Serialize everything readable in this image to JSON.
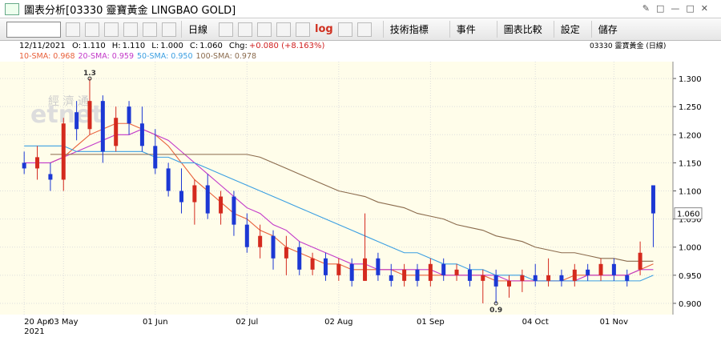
{
  "window": {
    "title": "圖表分析[03330 靈寶黃金 LINGBAO GOLD]"
  },
  "toolbar": {
    "period": "日線",
    "log": "log",
    "buttons": [
      "技術指標",
      "事件",
      "圖表比較",
      "設定",
      "儲存"
    ]
  },
  "info": {
    "date": "12/11/2021",
    "items": [
      "O:",
      "1.110",
      "H:",
      "1.110",
      "L:",
      "1.000",
      "C:",
      "1.060",
      "Chg:",
      "+0.080 (+8.163%)"
    ],
    "stock": "03330  靈寶黃金 (日線)"
  },
  "watermark": {
    "cn": "經 濟 通",
    "en": "etnet"
  },
  "chart_data": {
    "type": "candlestick",
    "categories": [
      "20 Apr",
      null,
      null,
      "03 May",
      null,
      null,
      null,
      null,
      null,
      null,
      "01 Jun",
      null,
      null,
      null,
      null,
      null,
      null,
      "02 Jul",
      null,
      null,
      null,
      null,
      null,
      null,
      "02 Aug",
      null,
      null,
      null,
      null,
      null,
      null,
      "01 Sep",
      null,
      null,
      null,
      null,
      null,
      null,
      null,
      "04 Oct",
      null,
      null,
      null,
      null,
      null,
      "01 Nov",
      null,
      null,
      null
    ],
    "x_year": "2021",
    "open": [
      1.15,
      1.14,
      1.13,
      1.12,
      1.24,
      1.21,
      1.26,
      1.18,
      1.25,
      1.22,
      1.18,
      1.14,
      1.1,
      1.08,
      1.11,
      1.06,
      1.09,
      1.04,
      1.0,
      1.02,
      0.98,
      1.0,
      0.96,
      0.98,
      0.95,
      0.97,
      0.94,
      0.98,
      0.95,
      0.94,
      0.96,
      0.94,
      0.97,
      0.95,
      0.96,
      0.94,
      0.95,
      0.93,
      0.94,
      0.95,
      0.94,
      0.95,
      0.94,
      0.96,
      0.95,
      0.97,
      0.95,
      0.96,
      1.11
    ],
    "high": [
      1.17,
      1.18,
      1.15,
      1.23,
      1.26,
      1.3,
      1.27,
      1.25,
      1.26,
      1.25,
      1.21,
      1.15,
      1.14,
      1.12,
      1.13,
      1.1,
      1.1,
      1.06,
      1.04,
      1.03,
      1.02,
      1.01,
      0.99,
      0.99,
      0.98,
      0.98,
      1.06,
      0.99,
      0.97,
      0.97,
      0.97,
      0.98,
      0.98,
      0.97,
      0.97,
      0.96,
      0.96,
      0.95,
      0.96,
      0.97,
      0.98,
      0.96,
      0.97,
      0.97,
      0.98,
      0.98,
      0.96,
      1.01,
      1.11
    ],
    "low": [
      1.13,
      1.12,
      1.1,
      1.1,
      1.19,
      1.2,
      1.15,
      1.17,
      1.2,
      1.17,
      1.13,
      1.09,
      1.06,
      1.04,
      1.05,
      1.04,
      1.02,
      0.99,
      0.98,
      0.96,
      0.95,
      0.95,
      0.95,
      0.94,
      0.94,
      0.93,
      0.94,
      0.94,
      0.93,
      0.93,
      0.93,
      0.93,
      0.94,
      0.94,
      0.93,
      0.9,
      0.9,
      0.91,
      0.92,
      0.93,
      0.93,
      0.93,
      0.93,
      0.94,
      0.94,
      0.94,
      0.93,
      0.95,
      1.0
    ],
    "close": [
      1.14,
      1.16,
      1.12,
      1.22,
      1.21,
      1.26,
      1.17,
      1.23,
      1.22,
      1.18,
      1.14,
      1.1,
      1.08,
      1.11,
      1.06,
      1.09,
      1.04,
      1.0,
      1.02,
      0.98,
      1.0,
      0.96,
      0.98,
      0.95,
      0.97,
      0.94,
      0.98,
      0.95,
      0.94,
      0.96,
      0.94,
      0.97,
      0.95,
      0.96,
      0.94,
      0.95,
      0.93,
      0.94,
      0.95,
      0.94,
      0.95,
      0.94,
      0.96,
      0.95,
      0.97,
      0.95,
      0.94,
      0.99,
      1.06
    ],
    "up_color": "#d42a1e",
    "down_color": "#1c38d4",
    "series": [
      {
        "name": "10-SMA: 0.968",
        "color": "#e8603a",
        "values": [
          null,
          null,
          1.15,
          1.16,
          1.18,
          1.2,
          1.21,
          1.22,
          1.22,
          1.21,
          1.2,
          1.18,
          1.15,
          1.12,
          1.1,
          1.08,
          1.06,
          1.05,
          1.03,
          1.02,
          1.0,
          0.99,
          0.98,
          0.97,
          0.97,
          0.96,
          0.96,
          0.96,
          0.96,
          0.95,
          0.95,
          0.95,
          0.95,
          0.95,
          0.95,
          0.95,
          0.94,
          0.94,
          0.94,
          0.94,
          0.94,
          0.94,
          0.95,
          0.95,
          0.95,
          0.95,
          0.95,
          0.96,
          0.97
        ]
      },
      {
        "name": "20-SMA: 0.959",
        "color": "#c238c8",
        "values": [
          1.15,
          1.15,
          1.15,
          1.16,
          1.17,
          1.18,
          1.19,
          1.2,
          1.2,
          1.21,
          1.2,
          1.19,
          1.17,
          1.15,
          1.13,
          1.11,
          1.09,
          1.07,
          1.06,
          1.04,
          1.03,
          1.01,
          1.0,
          0.99,
          0.98,
          0.97,
          0.97,
          0.96,
          0.96,
          0.96,
          0.96,
          0.96,
          0.95,
          0.95,
          0.95,
          0.95,
          0.95,
          0.94,
          0.94,
          0.94,
          0.94,
          0.94,
          0.94,
          0.95,
          0.95,
          0.95,
          0.95,
          0.96,
          0.96
        ]
      },
      {
        "name": "50-SMA: 0.950",
        "color": "#3b9fe2",
        "values": [
          1.18,
          1.18,
          1.18,
          1.18,
          1.17,
          1.17,
          1.17,
          1.17,
          1.17,
          1.17,
          1.16,
          1.16,
          1.15,
          1.15,
          1.14,
          1.13,
          1.12,
          1.11,
          1.1,
          1.09,
          1.08,
          1.07,
          1.06,
          1.05,
          1.04,
          1.03,
          1.02,
          1.01,
          1.0,
          0.99,
          0.99,
          0.98,
          0.97,
          0.97,
          0.96,
          0.96,
          0.95,
          0.95,
          0.95,
          0.94,
          0.94,
          0.94,
          0.94,
          0.94,
          0.94,
          0.94,
          0.94,
          0.94,
          0.95
        ]
      },
      {
        "name": "100-SMA: 0.978",
        "color": "#8a6a4c",
        "values": [
          null,
          null,
          1.165,
          1.165,
          1.165,
          1.165,
          1.165,
          1.165,
          1.165,
          1.165,
          1.165,
          1.165,
          1.165,
          1.165,
          1.165,
          1.165,
          1.165,
          1.165,
          1.16,
          1.15,
          1.14,
          1.13,
          1.12,
          1.11,
          1.1,
          1.095,
          1.09,
          1.08,
          1.075,
          1.07,
          1.06,
          1.055,
          1.05,
          1.04,
          1.035,
          1.03,
          1.02,
          1.015,
          1.01,
          1.0,
          0.995,
          0.99,
          0.99,
          0.985,
          0.98,
          0.98,
          0.975,
          0.975,
          0.975
        ]
      }
    ],
    "annotations": [
      {
        "text": "1.3",
        "index": 5,
        "value": 1.3
      },
      {
        "text": "0.9",
        "index": 36,
        "value": 0.9
      }
    ],
    "last_price": {
      "value": 1.06,
      "label": "1.060"
    },
    "ylim": [
      0.88,
      1.33
    ],
    "yticks": [
      {
        "value": 0.9,
        "label": "0.900"
      },
      {
        "value": 0.95,
        "label": "0.950"
      },
      {
        "value": 1.0,
        "label": "1.000"
      },
      {
        "value": 1.05,
        "label": "1.050"
      },
      {
        "value": 1.1,
        "label": "1.100"
      },
      {
        "value": 1.15,
        "label": "1.150"
      },
      {
        "value": 1.2,
        "label": "1.200"
      },
      {
        "value": 1.25,
        "label": "1.250"
      },
      {
        "value": 1.3,
        "label": "1.300"
      }
    ],
    "grid": true
  }
}
